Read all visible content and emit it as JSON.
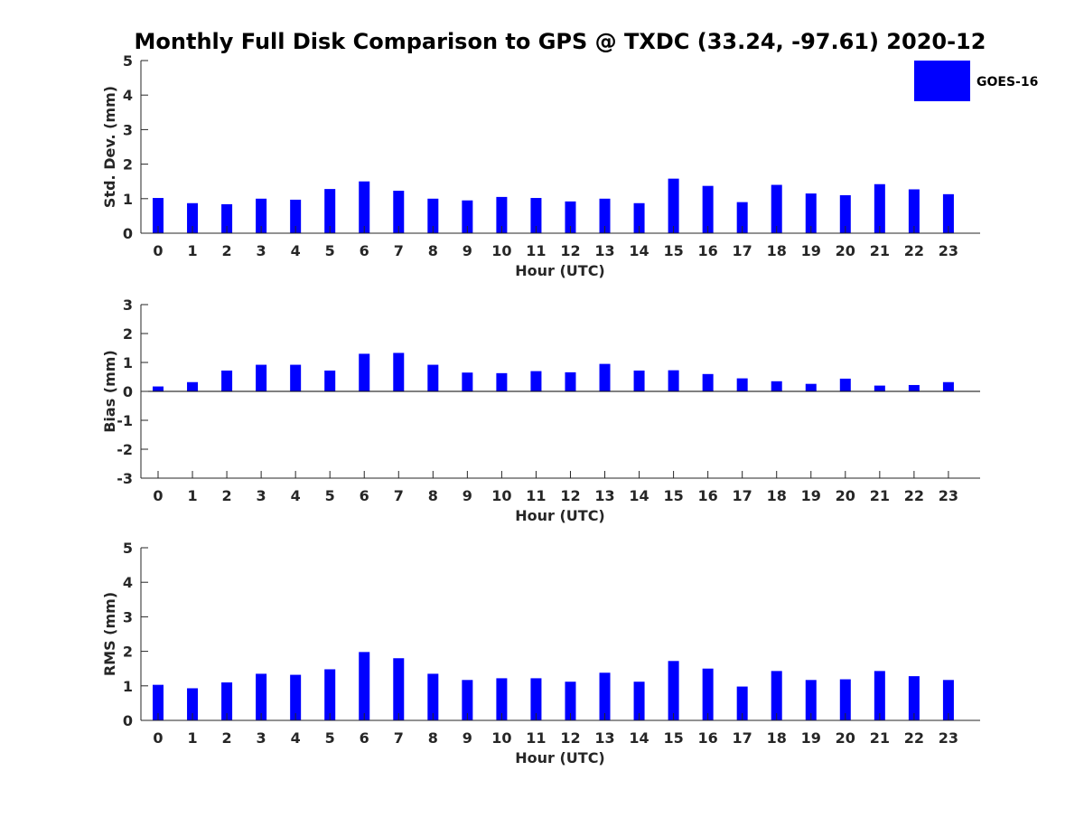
{
  "title": "Monthly Full Disk Comparison to GPS @ TXDC (33.24, -97.61) 2020-12",
  "legend": {
    "label": "GOES-16",
    "color": "#0000ff"
  },
  "chart_data": [
    {
      "type": "bar",
      "name": "std-dev",
      "xlabel": "Hour (UTC)",
      "ylabel": "Std. Dev. (mm)",
      "ylim": [
        0,
        5
      ],
      "yticks": [
        0,
        1,
        2,
        3,
        4,
        5
      ],
      "categories": [
        "0",
        "1",
        "2",
        "3",
        "4",
        "5",
        "6",
        "7",
        "8",
        "9",
        "10",
        "11",
        "12",
        "13",
        "14",
        "15",
        "16",
        "17",
        "18",
        "19",
        "20",
        "21",
        "22",
        "23"
      ],
      "series": [
        {
          "name": "GOES-16",
          "values": [
            1.02,
            0.87,
            0.84,
            1.0,
            0.97,
            1.28,
            1.5,
            1.23,
            1.0,
            0.95,
            1.05,
            1.02,
            0.92,
            1.0,
            0.87,
            1.58,
            1.37,
            0.9,
            1.4,
            1.15,
            1.1,
            1.42,
            1.27,
            1.13
          ]
        }
      ],
      "zero_line": false
    },
    {
      "type": "bar",
      "name": "bias",
      "xlabel": "Hour (UTC)",
      "ylabel": "Bias (mm)",
      "ylim": [
        -3,
        3
      ],
      "yticks": [
        -3,
        -2,
        -1,
        0,
        1,
        2,
        3
      ],
      "categories": [
        "0",
        "1",
        "2",
        "3",
        "4",
        "5",
        "6",
        "7",
        "8",
        "9",
        "10",
        "11",
        "12",
        "13",
        "14",
        "15",
        "16",
        "17",
        "18",
        "19",
        "20",
        "21",
        "22",
        "23"
      ],
      "series": [
        {
          "name": "GOES-16",
          "values": [
            0.17,
            0.32,
            0.72,
            0.92,
            0.92,
            0.72,
            1.3,
            1.33,
            0.92,
            0.65,
            0.63,
            0.7,
            0.66,
            0.95,
            0.72,
            0.73,
            0.6,
            0.45,
            0.35,
            0.26,
            0.44,
            0.2,
            0.22,
            0.32
          ]
        }
      ],
      "zero_line": true
    },
    {
      "type": "bar",
      "name": "rms",
      "xlabel": "Hour (UTC)",
      "ylabel": "RMS (mm)",
      "ylim": [
        0,
        5
      ],
      "yticks": [
        0,
        1,
        2,
        3,
        4,
        5
      ],
      "categories": [
        "0",
        "1",
        "2",
        "3",
        "4",
        "5",
        "6",
        "7",
        "8",
        "9",
        "10",
        "11",
        "12",
        "13",
        "14",
        "15",
        "16",
        "17",
        "18",
        "19",
        "20",
        "21",
        "22",
        "23"
      ],
      "series": [
        {
          "name": "GOES-16",
          "values": [
            1.03,
            0.93,
            1.1,
            1.35,
            1.32,
            1.48,
            1.98,
            1.8,
            1.35,
            1.17,
            1.22,
            1.22,
            1.12,
            1.38,
            1.12,
            1.72,
            1.5,
            0.98,
            1.43,
            1.17,
            1.19,
            1.43,
            1.28,
            1.17
          ]
        }
      ],
      "zero_line": false
    }
  ]
}
